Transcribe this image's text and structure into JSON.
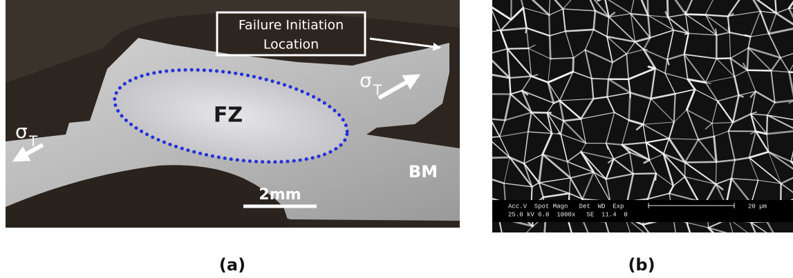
{
  "panel_a": {
    "callout": [
      "Failure Initiation",
      "Location"
    ],
    "stress_right": {
      "symbol": "σ",
      "subscript": "T"
    },
    "stress_left": {
      "symbol": "σ",
      "subscript": "T"
    },
    "zone_label": "FZ",
    "base_label": "BM",
    "scale_bar": "2mm",
    "caption": "(a)"
  },
  "panel_b": {
    "databar": {
      "header": "Acc.V  Spot Magn   Det  WD  Exp",
      "values": "25.0 kV 6.0  1000x   SE  11.4  0",
      "scale": "20 µm"
    },
    "caption": "(b)"
  }
}
